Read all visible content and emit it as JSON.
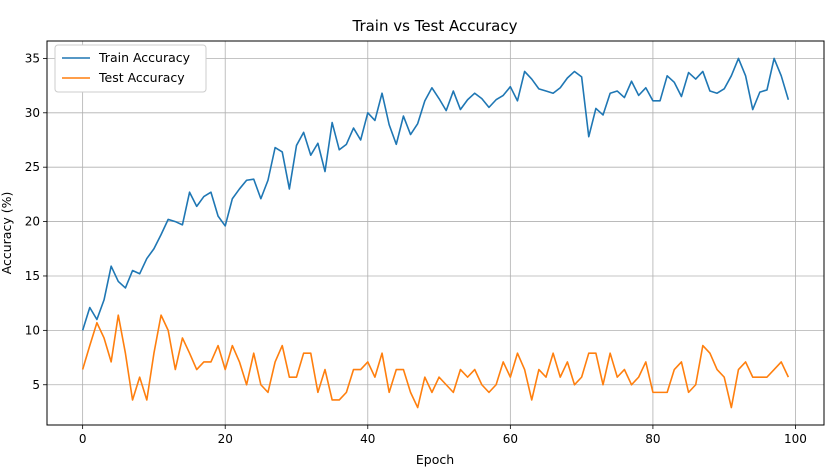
{
  "chart_data": {
    "type": "line",
    "title": "Train vs Test Accuracy",
    "xlabel": "Epoch",
    "ylabel": "Accuracy (%)",
    "xlim": [
      -5,
      104
    ],
    "ylim": [
      1.3,
      36.6
    ],
    "xticks": [
      0,
      20,
      40,
      60,
      80,
      100
    ],
    "yticks": [
      5,
      10,
      15,
      20,
      25,
      30,
      35
    ],
    "grid": true,
    "legend_position": "upper-left",
    "series": [
      {
        "name": "Train Accuracy",
        "color": "#1f77b4",
        "x": [
          0,
          1,
          2,
          3,
          4,
          5,
          6,
          7,
          8,
          9,
          10,
          11,
          12,
          13,
          14,
          15,
          16,
          17,
          18,
          19,
          20,
          21,
          22,
          23,
          24,
          25,
          26,
          27,
          28,
          29,
          30,
          31,
          32,
          33,
          34,
          35,
          36,
          37,
          38,
          39,
          40,
          41,
          42,
          43,
          44,
          45,
          46,
          47,
          48,
          49,
          50,
          51,
          52,
          53,
          54,
          55,
          56,
          57,
          58,
          59,
          60,
          61,
          62,
          63,
          64,
          65,
          66,
          67,
          68,
          69,
          70,
          71,
          72,
          73,
          74,
          75,
          76,
          77,
          78,
          79,
          80,
          81,
          82,
          83,
          84,
          85,
          86,
          87,
          88,
          89,
          90,
          91,
          92,
          93,
          94,
          95,
          96,
          97,
          98,
          99
        ],
        "values": [
          10.0,
          12.1,
          11.0,
          12.8,
          15.9,
          14.5,
          13.9,
          15.5,
          15.2,
          16.6,
          17.5,
          18.8,
          20.2,
          20.0,
          19.7,
          22.7,
          21.4,
          22.3,
          22.7,
          20.5,
          19.6,
          22.1,
          23.0,
          23.8,
          23.9,
          22.1,
          23.8,
          26.8,
          26.4,
          23.0,
          27.0,
          28.2,
          26.1,
          27.2,
          24.6,
          29.1,
          26.6,
          27.1,
          28.6,
          27.5,
          30.0,
          29.3,
          31.8,
          28.9,
          27.1,
          29.7,
          28.0,
          29.0,
          31.1,
          32.3,
          31.3,
          30.2,
          32.0,
          30.3,
          31.2,
          31.8,
          31.3,
          30.5,
          31.2,
          31.6,
          32.4,
          31.1,
          33.8,
          33.1,
          32.2,
          32.0,
          31.8,
          32.3,
          33.2,
          33.8,
          33.3,
          27.8,
          30.4,
          29.8,
          31.8,
          32.0,
          31.4,
          32.9,
          31.6,
          32.3,
          31.1,
          31.1,
          33.4,
          32.8,
          31.5,
          33.7,
          33.1,
          33.8,
          32.0,
          31.8,
          32.2,
          33.4,
          35.0,
          33.4,
          30.3,
          31.9,
          32.1,
          35.0,
          33.4,
          31.2
        ]
      },
      {
        "name": "Test Accuracy",
        "color": "#ff7f0e",
        "x": [
          0,
          1,
          2,
          3,
          4,
          5,
          6,
          7,
          8,
          9,
          10,
          11,
          12,
          13,
          14,
          15,
          16,
          17,
          18,
          19,
          20,
          21,
          22,
          23,
          24,
          25,
          26,
          27,
          28,
          29,
          30,
          31,
          32,
          33,
          34,
          35,
          36,
          37,
          38,
          39,
          40,
          41,
          42,
          43,
          44,
          45,
          46,
          47,
          48,
          49,
          50,
          51,
          52,
          53,
          54,
          55,
          56,
          57,
          58,
          59,
          60,
          61,
          62,
          63,
          64,
          65,
          66,
          67,
          68,
          69,
          70,
          71,
          72,
          73,
          74,
          75,
          76,
          77,
          78,
          79,
          80,
          81,
          82,
          83,
          84,
          85,
          86,
          87,
          88,
          89,
          90,
          91,
          92,
          93,
          94,
          95,
          96,
          97,
          98,
          99
        ],
        "values": [
          6.4,
          8.6,
          10.7,
          9.3,
          7.1,
          11.4,
          7.9,
          3.6,
          5.7,
          3.6,
          7.9,
          11.4,
          10.0,
          6.4,
          9.3,
          7.9,
          6.4,
          7.1,
          7.1,
          8.6,
          6.4,
          8.6,
          7.1,
          5.0,
          7.9,
          5.0,
          4.3,
          7.1,
          8.6,
          5.7,
          5.7,
          7.9,
          7.9,
          4.3,
          6.4,
          3.6,
          3.6,
          4.3,
          6.4,
          6.4,
          7.1,
          5.7,
          7.9,
          4.3,
          6.4,
          6.4,
          4.3,
          2.9,
          5.7,
          4.3,
          5.7,
          5.0,
          4.3,
          6.4,
          5.7,
          6.4,
          5.0,
          4.3,
          5.0,
          7.1,
          5.7,
          7.9,
          6.4,
          3.6,
          6.4,
          5.7,
          7.9,
          5.7,
          7.1,
          5.0,
          5.7,
          7.9,
          7.9,
          5.0,
          7.9,
          5.7,
          6.4,
          5.0,
          5.7,
          7.1,
          4.3,
          4.3,
          4.3,
          6.4,
          7.1,
          4.3,
          5.0,
          8.6,
          7.9,
          6.4,
          5.7,
          2.9,
          6.4,
          7.1,
          5.7,
          5.7,
          5.7,
          6.4,
          7.1,
          5.7
        ]
      }
    ]
  }
}
